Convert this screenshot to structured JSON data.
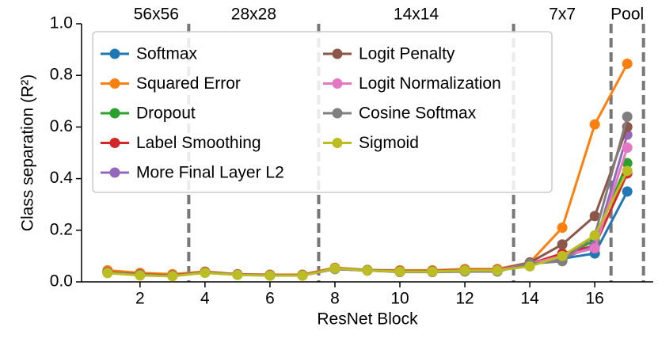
{
  "chart_data": {
    "type": "line",
    "xlabel": "ResNet Block",
    "ylabel": "Class separation (R²)",
    "x": [
      1,
      2,
      3,
      4,
      5,
      6,
      7,
      8,
      9,
      10,
      11,
      12,
      13,
      14,
      15,
      16,
      17
    ],
    "xlim": [
      0.2,
      17.8
    ],
    "xticks": [
      2,
      4,
      6,
      8,
      10,
      12,
      14,
      16
    ],
    "ylim": [
      0,
      1
    ],
    "yticks": [
      {
        "value": 0,
        "label": "0.0"
      },
      {
        "value": 0.2,
        "label": "0.2"
      },
      {
        "value": 0.4,
        "label": "0.4"
      },
      {
        "value": 0.6,
        "label": "0.6"
      },
      {
        "value": 0.8,
        "label": "0.8"
      },
      {
        "value": 1,
        "label": "1.0"
      }
    ],
    "dividers": [
      3.5,
      7.5,
      13.5,
      16.5,
      17.5
    ],
    "sections": [
      "56x56",
      "28x28",
      "14x14",
      "7x7",
      "Pool"
    ],
    "legend": "upper left",
    "series": [
      {
        "name": "Softmax",
        "color": "#1f77b4",
        "values": [
          0.038,
          0.028,
          0.024,
          0.036,
          0.028,
          0.025,
          0.025,
          0.05,
          0.044,
          0.04,
          0.04,
          0.044,
          0.044,
          0.07,
          0.09,
          0.11,
          0.35
        ]
      },
      {
        "name": "Squared Error",
        "color": "#ff7f0e",
        "values": [
          0.045,
          0.035,
          0.03,
          0.04,
          0.03,
          0.028,
          0.028,
          0.055,
          0.046,
          0.045,
          0.045,
          0.05,
          0.05,
          0.075,
          0.21,
          0.61,
          0.845
        ]
      },
      {
        "name": "Dropout",
        "color": "#2ca02c",
        "values": [
          0.036,
          0.027,
          0.023,
          0.036,
          0.028,
          0.025,
          0.025,
          0.05,
          0.044,
          0.04,
          0.04,
          0.044,
          0.044,
          0.07,
          0.1,
          0.16,
          0.46
        ]
      },
      {
        "name": "Label Smoothing",
        "color": "#d62728",
        "values": [
          0.037,
          0.028,
          0.024,
          0.037,
          0.029,
          0.026,
          0.026,
          0.052,
          0.045,
          0.041,
          0.041,
          0.045,
          0.045,
          0.07,
          0.11,
          0.14,
          0.42
        ]
      },
      {
        "name": "More Final Layer L2",
        "color": "#9467bd",
        "values": [
          0.036,
          0.027,
          0.023,
          0.036,
          0.028,
          0.025,
          0.025,
          0.05,
          0.044,
          0.04,
          0.04,
          0.044,
          0.044,
          0.07,
          0.09,
          0.14,
          0.57
        ]
      },
      {
        "name": "Logit Penalty",
        "color": "#8c564b",
        "values": [
          0.038,
          0.029,
          0.025,
          0.038,
          0.029,
          0.026,
          0.026,
          0.053,
          0.046,
          0.042,
          0.042,
          0.046,
          0.046,
          0.075,
          0.145,
          0.255,
          0.6
        ]
      },
      {
        "name": "Logit Normalization",
        "color": "#e377c2",
        "values": [
          0.036,
          0.027,
          0.023,
          0.036,
          0.028,
          0.025,
          0.025,
          0.05,
          0.044,
          0.04,
          0.04,
          0.044,
          0.044,
          0.07,
          0.1,
          0.13,
          0.52
        ]
      },
      {
        "name": "Cosine Softmax",
        "color": "#7f7f7f",
        "values": [
          0.036,
          0.027,
          0.023,
          0.036,
          0.028,
          0.025,
          0.025,
          0.05,
          0.044,
          0.038,
          0.038,
          0.04,
          0.04,
          0.07,
          0.08,
          0.18,
          0.64
        ]
      },
      {
        "name": "Sigmoid",
        "color": "#bcbd22",
        "values": [
          0.034,
          0.025,
          0.022,
          0.035,
          0.027,
          0.024,
          0.024,
          0.052,
          0.044,
          0.04,
          0.04,
          0.044,
          0.044,
          0.06,
          0.1,
          0.18,
          0.43
        ]
      }
    ]
  }
}
